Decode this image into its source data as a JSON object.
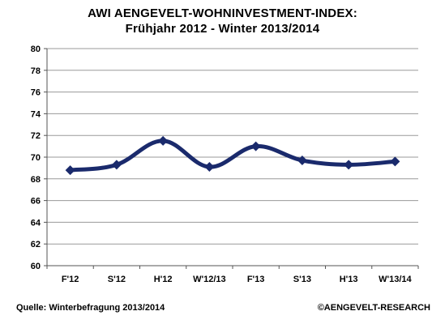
{
  "chart_data": {
    "type": "line",
    "title": "AWI AENGEVELT-WOHNINVESTMENT-INDEX:",
    "subtitle": "Frühjahr 2012 - Winter 2013/2014",
    "xlabel": "",
    "ylabel": "",
    "categories": [
      "F'12",
      "S'12",
      "H'12",
      "W'12/13",
      "F'13",
      "S'13",
      "H'13",
      "W'13/14"
    ],
    "series": [
      {
        "values": [
          68.8,
          69.3,
          71.5,
          69.1,
          71.0,
          69.7,
          69.3,
          69.6
        ]
      }
    ],
    "ylim": [
      60,
      80
    ],
    "yticks": [
      "60",
      "62",
      "64",
      "66",
      "68",
      "70",
      "72",
      "74",
      "76",
      "78",
      "80"
    ],
    "grid": true,
    "legend": "none",
    "line_color": "#1a2a6c",
    "grid_color": "#9a9a9a"
  },
  "footer": {
    "source": "Quelle: Winterbefragung 2013/2014",
    "copyright": "©AENGEVELT-RESEARCH"
  }
}
